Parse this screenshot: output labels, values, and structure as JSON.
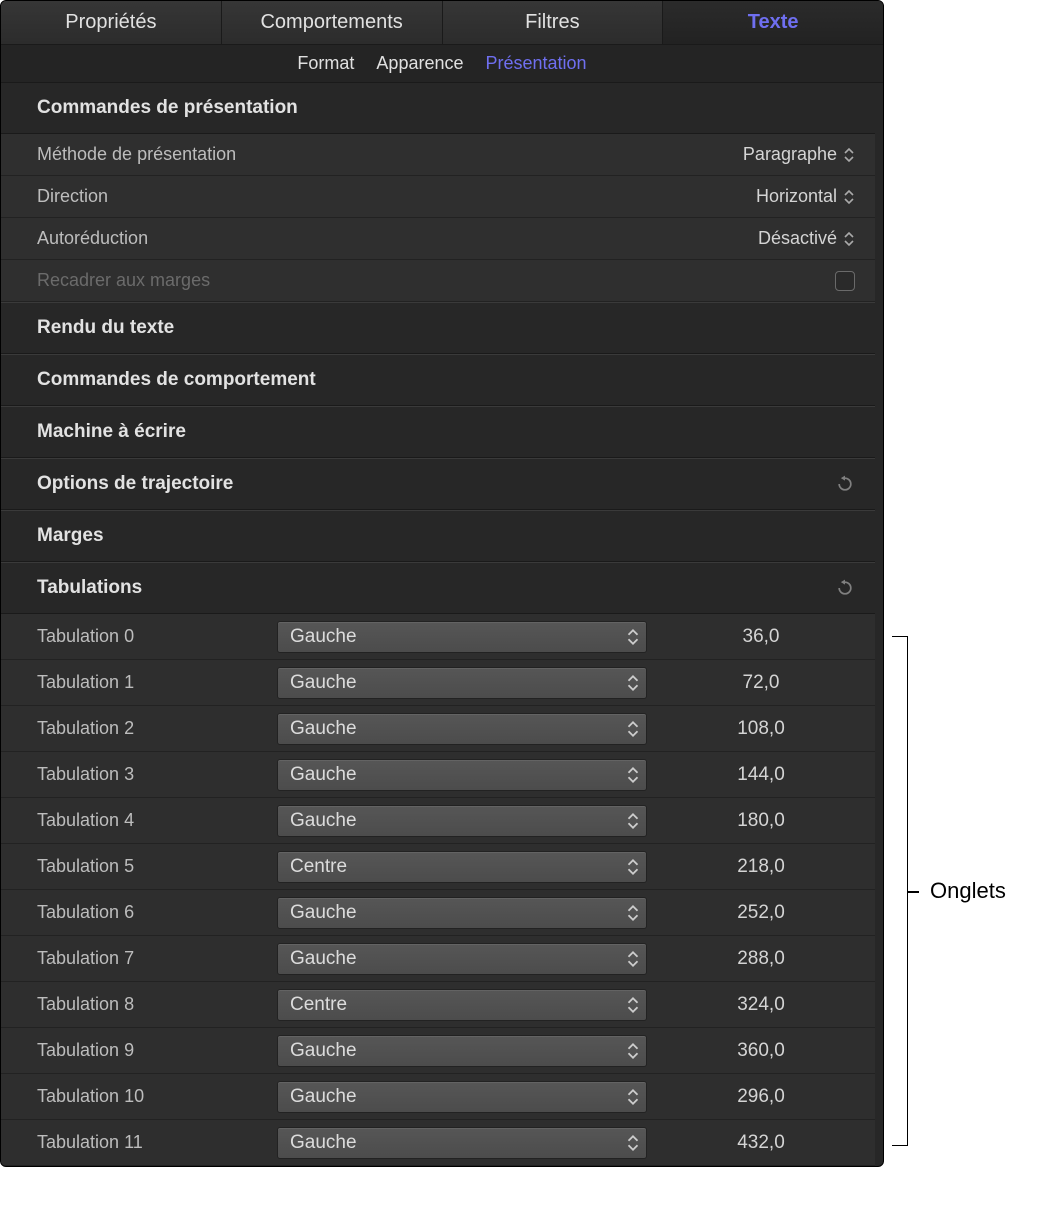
{
  "tabs": {
    "items": [
      "Propriétés",
      "Comportements",
      "Filtres",
      "Texte"
    ],
    "active_index": 3
  },
  "subtabs": {
    "items": [
      "Format",
      "Apparence",
      "Présentation"
    ],
    "active_index": 2
  },
  "sections": {
    "presentation": {
      "title": "Commandes de présentation"
    },
    "rendu": {
      "title": "Rendu du texte"
    },
    "comportement": {
      "title": "Commandes de comportement"
    },
    "machine": {
      "title": "Machine à écrire"
    },
    "trajectoire": {
      "title": "Options de trajectoire",
      "has_reset": true
    },
    "marges": {
      "title": "Marges"
    },
    "tabulations": {
      "title": "Tabulations",
      "has_reset": true
    }
  },
  "params": {
    "methode": {
      "label": "Méthode de présentation",
      "value": "Paragraphe"
    },
    "direction": {
      "label": "Direction",
      "value": "Horizontal"
    },
    "autoreduction": {
      "label": "Autoréduction",
      "value": "Désactivé"
    },
    "recadrer": {
      "label": "Recadrer aux marges",
      "checked": false
    }
  },
  "tabstops": [
    {
      "label": "Tabulation 0",
      "align": "Gauche",
      "value": "36,0"
    },
    {
      "label": "Tabulation 1",
      "align": "Gauche",
      "value": "72,0"
    },
    {
      "label": "Tabulation 2",
      "align": "Gauche",
      "value": "108,0"
    },
    {
      "label": "Tabulation 3",
      "align": "Gauche",
      "value": "144,0"
    },
    {
      "label": "Tabulation 4",
      "align": "Gauche",
      "value": "180,0"
    },
    {
      "label": "Tabulation 5",
      "align": "Centre",
      "value": "218,0"
    },
    {
      "label": "Tabulation 6",
      "align": "Gauche",
      "value": "252,0"
    },
    {
      "label": "Tabulation 7",
      "align": "Gauche",
      "value": "288,0"
    },
    {
      "label": "Tabulation 8",
      "align": "Centre",
      "value": "324,0"
    },
    {
      "label": "Tabulation 9",
      "align": "Gauche",
      "value": "360,0"
    },
    {
      "label": "Tabulation 10",
      "align": "Gauche",
      "value": "296,0"
    },
    {
      "label": "Tabulation 11",
      "align": "Gauche",
      "value": "432,0"
    }
  ],
  "annotation": {
    "label": "Onglets"
  },
  "colors": {
    "panel_bg": "#272727",
    "row_bg": "#2f2f2f",
    "dropdown_bg": "#515151",
    "accent": "#6f6ff0",
    "text": "#d8d8d8",
    "muted": "#6b6b6b",
    "border": "#1a1a1a"
  }
}
